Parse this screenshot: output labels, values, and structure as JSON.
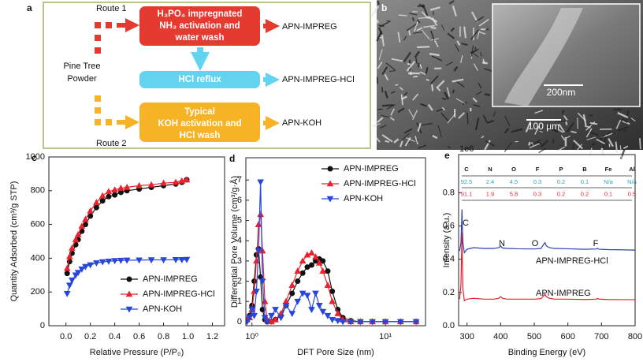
{
  "diagram": {
    "label": "a",
    "route1": "Route 1",
    "route2": "Route 2",
    "source": [
      "Pine Tree",
      "Powder"
    ],
    "steps": [
      {
        "lines": [
          "H₃PO₄ impregnated",
          "NH₃ activation and",
          "water wash"
        ],
        "color": "#e53a2f"
      },
      {
        "lines": [
          "HCl reflux"
        ],
        "color": "#63d4f0"
      },
      {
        "lines": [
          "Typical",
          "KOH activation and",
          "HCl wash"
        ],
        "color": "#f6b326"
      }
    ],
    "products": [
      "APN-IMPREG",
      "APN-IMPREG-HCl",
      "APN-KOH"
    ]
  },
  "image": {
    "label": "b",
    "inset_scale": "200nm",
    "scale": "100 µm"
  },
  "chart_data": [
    {
      "type": "line",
      "label": "c",
      "xlabel": "Relative Pressure (P/P₀)",
      "ylabel": "Quantity Adsorbed (cm³/g STP)",
      "xlim": [
        -0.14,
        1.3
      ],
      "ylim": [
        0,
        1000
      ],
      "xticks": [
        {
          "value": 0,
          "label": "0.0"
        },
        {
          "value": 0.2,
          "label": "0.2"
        },
        {
          "value": 0.4,
          "label": "0.4"
        },
        {
          "value": 0.6,
          "label": "0.6"
        },
        {
          "value": 0.8,
          "label": "0.8"
        },
        {
          "value": 1,
          "label": "1.0"
        },
        {
          "value": 1.2,
          "label": "1.2"
        }
      ],
      "yticks": [
        0,
        200,
        400,
        600,
        800,
        1000
      ],
      "legend": "lower right",
      "x": [
        0.01,
        0.03,
        0.05,
        0.08,
        0.1,
        0.13,
        0.16,
        0.2,
        0.25,
        0.3,
        0.35,
        0.4,
        0.45,
        0.5,
        0.6,
        0.7,
        0.8,
        0.9,
        0.95,
        0.99
      ],
      "series": [
        {
          "name": "APN-IMPREG",
          "color": "#111111",
          "marker": "circle",
          "values": [
            310,
            380,
            430,
            480,
            510,
            560,
            600,
            650,
            700,
            740,
            765,
            775,
            790,
            800,
            810,
            820,
            830,
            840,
            850,
            865
          ]
        },
        {
          "name": "APN-IMPREG-HCl",
          "color": "#e8232f",
          "marker": "triangle",
          "values": [
            340,
            410,
            460,
            510,
            540,
            590,
            630,
            680,
            730,
            770,
            795,
            805,
            815,
            820,
            830,
            835,
            845,
            850,
            858,
            865
          ]
        },
        {
          "name": "APN-KOH",
          "color": "#2846d8",
          "marker": "triangle-down",
          "values": [
            190,
            240,
            270,
            300,
            315,
            335,
            350,
            360,
            372,
            378,
            382,
            385,
            387,
            388,
            389,
            390,
            390,
            391,
            391,
            392
          ]
        }
      ]
    },
    {
      "type": "line",
      "label": "d",
      "xlabel": "DFT Pore Size (nm)",
      "ylabel": "Differential Pore Volume (cm³/g·Å)",
      "xscale": "log",
      "xlim": [
        0.9,
        20
      ],
      "ylim": [
        -0.2,
        8.1
      ],
      "xticks": [
        {
          "value": 1,
          "label": "10⁰"
        },
        {
          "value": 10,
          "label": "10¹"
        }
      ],
      "yticks": [
        0,
        1,
        2,
        3,
        4,
        5,
        6,
        7
      ],
      "legend": "upper right",
      "x": [
        0.92,
        0.96,
        1.0,
        1.04,
        1.08,
        1.12,
        1.16,
        1.2,
        1.25,
        1.3,
        1.4,
        1.5,
        1.65,
        1.8,
        2.0,
        2.2,
        2.4,
        2.6,
        2.8,
        3.0,
        3.2,
        3.4,
        3.7,
        4.0,
        4.4,
        4.8,
        5.5,
        6.5,
        8,
        10,
        13,
        17
      ],
      "series": [
        {
          "name": "APN-IMPREG",
          "color": "#111111",
          "marker": "circle",
          "values": [
            0.1,
            0.3,
            0.8,
            2.0,
            3.3,
            3.6,
            2.2,
            0.6,
            0.1,
            0,
            0,
            0.1,
            0.3,
            0.8,
            1.4,
            2.0,
            2.4,
            2.7,
            2.8,
            3.0,
            3.1,
            3.0,
            2.5,
            1.5,
            0.6,
            0.2,
            0.05,
            0,
            0,
            0,
            0,
            0
          ]
        },
        {
          "name": "APN-IMPREG-HCl",
          "color": "#e8232f",
          "marker": "triangle",
          "values": [
            0.1,
            0.2,
            0.6,
            1.5,
            3.0,
            4.8,
            5.3,
            3.5,
            1.0,
            0.1,
            0,
            0.1,
            0.4,
            1.0,
            1.8,
            2.5,
            3.0,
            3.3,
            3.4,
            3.2,
            2.9,
            2.5,
            1.8,
            1.0,
            0.4,
            0.1,
            0,
            0,
            0,
            0,
            0,
            0
          ]
        },
        {
          "name": "APN-KOH",
          "color": "#2846d8",
          "marker": "triangle-down",
          "values": [
            0,
            0.2,
            0.6,
            0.3,
            1.5,
            3.5,
            6.9,
            2.0,
            0.2,
            0,
            0.3,
            0.6,
            0.2,
            0.8,
            0.4,
            1.0,
            1.4,
            1.3,
            0.6,
            1.4,
            0.8,
            0.5,
            0.3,
            0.1,
            0.05,
            0,
            0,
            0,
            0,
            0,
            0,
            0
          ]
        }
      ]
    },
    {
      "type": "line",
      "label": "e",
      "xlabel": "Binding Energy (eV)",
      "ylabel": "Intensity (a.u.)",
      "y_multiplier": "1e6",
      "xlim": [
        275,
        800
      ],
      "ylim": [
        0,
        1.03
      ],
      "xticks": [
        300,
        400,
        500,
        600,
        700,
        800
      ],
      "yticks": [
        {
          "value": 0,
          "label": "0.0"
        },
        {
          "value": 0.2,
          "label": "0.2"
        },
        {
          "value": 0.4,
          "label": "0.4"
        },
        {
          "value": 0.6,
          "label": "0.6"
        },
        {
          "value": 0.8,
          "label": "0.8"
        }
      ],
      "peak_labels": [
        "C",
        "N",
        "O",
        "F"
      ],
      "x": [
        278,
        282,
        284,
        285,
        286,
        288,
        292,
        300,
        320,
        350,
        380,
        395,
        400,
        405,
        420,
        450,
        500,
        520,
        528,
        532,
        536,
        545,
        560,
        600,
        650,
        685,
        688,
        692,
        720,
        760,
        800
      ],
      "series": [
        {
          "name": "APN-IMPREG-HCl",
          "color": "#2f3fb4",
          "values": [
            0.45,
            0.5,
            0.62,
            0.7,
            0.6,
            0.5,
            0.44,
            0.46,
            0.47,
            0.465,
            0.465,
            0.47,
            0.48,
            0.468,
            0.465,
            0.463,
            0.462,
            0.465,
            0.49,
            0.5,
            0.48,
            0.47,
            0.465,
            0.463,
            0.46,
            0.462,
            0.466,
            0.46,
            0.458,
            0.457,
            0.455
          ]
        },
        {
          "name": "APN-IMPREG",
          "color": "#e8232f",
          "values": [
            0.16,
            0.25,
            0.45,
            0.56,
            0.4,
            0.22,
            0.15,
            0.16,
            0.165,
            0.16,
            0.16,
            0.165,
            0.175,
            0.165,
            0.16,
            0.16,
            0.16,
            0.163,
            0.18,
            0.19,
            0.175,
            0.165,
            0.16,
            0.16,
            0.158,
            0.16,
            0.165,
            0.16,
            0.158,
            0.157,
            0.157
          ]
        }
      ],
      "table": {
        "columns": [
          "C",
          "N",
          "O",
          "F",
          "P",
          "B",
          "Fe",
          "Al"
        ],
        "rows": [
          [
            92.5,
            2.4,
            4.5,
            0.3,
            0.2,
            0.1,
            "N/a",
            "N/a"
          ],
          [
            91.1,
            1.9,
            5.8,
            0.3,
            0.2,
            0.2,
            0.1,
            0.5
          ]
        ],
        "row_colors": [
          "#2aa6b8",
          "#e8232f"
        ]
      }
    }
  ]
}
